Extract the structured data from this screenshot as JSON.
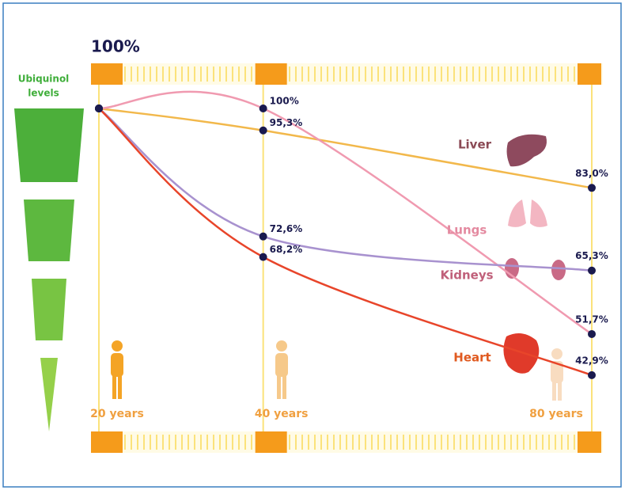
{
  "chart_data": {
    "type": "line",
    "scale_label": "100%",
    "side_label": [
      "Ubiquinol",
      "levels"
    ],
    "x": [
      20,
      40,
      80
    ],
    "xlim": [
      20,
      80
    ],
    "xticks": [
      {
        "value": 20,
        "label": "20 years"
      },
      {
        "value": 40,
        "label": "40 years"
      },
      {
        "value": 80,
        "label": "80 years"
      }
    ],
    "ylim": [
      40,
      100
    ],
    "series": [
      {
        "name": "Liver",
        "color": "#f2b84b",
        "label_color": "#8b4a55",
        "values": [
          100,
          95.3,
          83.0
        ],
        "value_labels": [
          null,
          "95,3%",
          "83,0%"
        ]
      },
      {
        "name": "Lungs",
        "color": "#f09ab0",
        "label_color": "#e48aa0",
        "values": [
          100,
          100,
          51.7
        ],
        "value_labels": [
          null,
          "100%",
          "51,7%"
        ]
      },
      {
        "name": "Kidneys",
        "color": "#a892cf",
        "label_color": "#c0607a",
        "values": [
          100,
          72.6,
          65.3
        ],
        "value_labels": [
          null,
          "72,6%",
          "65,3%"
        ]
      },
      {
        "name": "Heart",
        "color": "#e8452a",
        "label_color": "#e05a20",
        "values": [
          100,
          68.2,
          42.9
        ],
        "value_labels": [
          null,
          "68,2%",
          "42,9%"
        ]
      }
    ]
  }
}
